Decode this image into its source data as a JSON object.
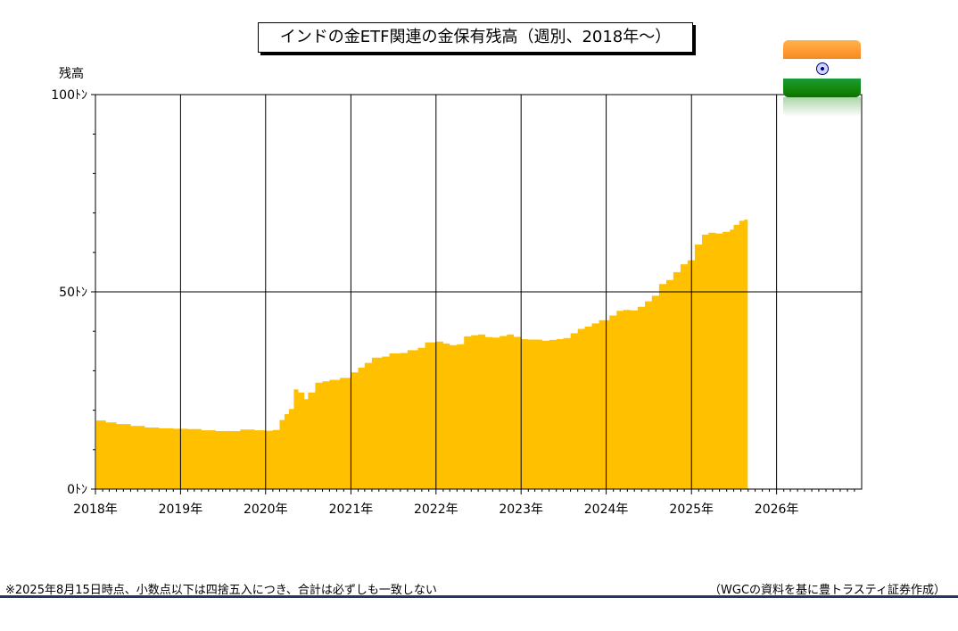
{
  "chart_data": {
    "type": "area",
    "title": "インドの金ETF関連の金保有残高（週別、2018年～）",
    "ylabel": "残高",
    "y_unit": "ﾄﾝ",
    "ylim": [
      0,
      100
    ],
    "y_ticks": [
      {
        "value": 0,
        "label": "0ﾄﾝ"
      },
      {
        "value": 50,
        "label": "50ﾄﾝ"
      },
      {
        "value": 100,
        "label": "100ﾄﾝ"
      }
    ],
    "xlim": [
      "2018-01-01",
      "2027-01-01"
    ],
    "x_ticks": [
      "2018年",
      "2019年",
      "2020年",
      "2021年",
      "2022年",
      "2023年",
      "2024年",
      "2025年",
      "2026年"
    ],
    "grid": true,
    "color": "#ffc000",
    "series": [
      {
        "points": [
          [
            "2018-01-05",
            17.4
          ],
          [
            "2018-02-15",
            16.9
          ],
          [
            "2018-04-01",
            16.5
          ],
          [
            "2018-06-01",
            16.0
          ],
          [
            "2018-08-01",
            15.6
          ],
          [
            "2018-10-01",
            15.4
          ],
          [
            "2018-12-01",
            15.3
          ],
          [
            "2019-02-01",
            15.2
          ],
          [
            "2019-04-01",
            14.9
          ],
          [
            "2019-06-01",
            14.7
          ],
          [
            "2019-08-01",
            14.7
          ],
          [
            "2019-09-15",
            15.1
          ],
          [
            "2019-11-15",
            14.9
          ],
          [
            "2020-01-01",
            14.8
          ],
          [
            "2020-02-01",
            15.0
          ],
          [
            "2020-03-01",
            17.5
          ],
          [
            "2020-03-22",
            19.0
          ],
          [
            "2020-04-10",
            20.3
          ],
          [
            "2020-05-01",
            25.3
          ],
          [
            "2020-05-20",
            24.5
          ],
          [
            "2020-06-15",
            22.8
          ],
          [
            "2020-07-01",
            24.5
          ],
          [
            "2020-08-01",
            27.0
          ],
          [
            "2020-09-01",
            27.3
          ],
          [
            "2020-10-01",
            27.7
          ],
          [
            "2020-11-15",
            28.2
          ],
          [
            "2021-01-01",
            29.6
          ],
          [
            "2021-02-01",
            30.8
          ],
          [
            "2021-03-01",
            32.0
          ],
          [
            "2021-04-01",
            33.3
          ],
          [
            "2021-05-15",
            33.6
          ],
          [
            "2021-06-15",
            34.4
          ],
          [
            "2021-08-01",
            34.5
          ],
          [
            "2021-09-01",
            35.2
          ],
          [
            "2021-10-15",
            35.8
          ],
          [
            "2021-11-15",
            37.2
          ],
          [
            "2022-01-01",
            37.4
          ],
          [
            "2022-02-01",
            36.9
          ],
          [
            "2022-03-01",
            36.5
          ],
          [
            "2022-04-01",
            36.7
          ],
          [
            "2022-05-01",
            38.7
          ],
          [
            "2022-06-01",
            39.0
          ],
          [
            "2022-07-01",
            39.2
          ],
          [
            "2022-08-01",
            38.5
          ],
          [
            "2022-09-01",
            38.4
          ],
          [
            "2022-10-01",
            38.8
          ],
          [
            "2022-11-01",
            39.2
          ],
          [
            "2022-12-01",
            38.6
          ],
          [
            "2023-01-01",
            38.0
          ],
          [
            "2023-02-01",
            37.9
          ],
          [
            "2023-03-01",
            37.9
          ],
          [
            "2023-04-01",
            37.6
          ],
          [
            "2023-05-01",
            37.8
          ],
          [
            "2023-06-01",
            38.0
          ],
          [
            "2023-07-01",
            38.3
          ],
          [
            "2023-08-01",
            39.5
          ],
          [
            "2023-09-01",
            40.6
          ],
          [
            "2023-10-01",
            41.2
          ],
          [
            "2023-11-01",
            42.0
          ],
          [
            "2023-12-01",
            42.8
          ],
          [
            "2024-01-15",
            44.0
          ],
          [
            "2024-02-15",
            45.2
          ],
          [
            "2024-03-15",
            45.4
          ],
          [
            "2024-04-15",
            45.3
          ],
          [
            "2024-05-15",
            46.2
          ],
          [
            "2024-06-15",
            47.6
          ],
          [
            "2024-07-15",
            49.0
          ],
          [
            "2024-08-15",
            52.0
          ],
          [
            "2024-09-15",
            53.0
          ],
          [
            "2024-10-15",
            55.0
          ],
          [
            "2024-11-15",
            57.0
          ],
          [
            "2024-12-15",
            58.0
          ],
          [
            "2025-01-15",
            62.0
          ],
          [
            "2025-02-15",
            64.5
          ],
          [
            "2025-03-15",
            65.0
          ],
          [
            "2025-04-15",
            64.8
          ],
          [
            "2025-05-15",
            65.2
          ],
          [
            "2025-06-15",
            65.8
          ],
          [
            "2025-07-01",
            67.0
          ],
          [
            "2025-07-25",
            68.0
          ],
          [
            "2025-08-15",
            68.3
          ]
        ]
      }
    ]
  },
  "footnote": "※2025年8月15日時点、小数点以下は四捨五入につき、合計は必ずしも一致しない",
  "source": "（WGCの資料を基に豊トラスティ証券作成）",
  "flag_icon": "india-flag-icon"
}
